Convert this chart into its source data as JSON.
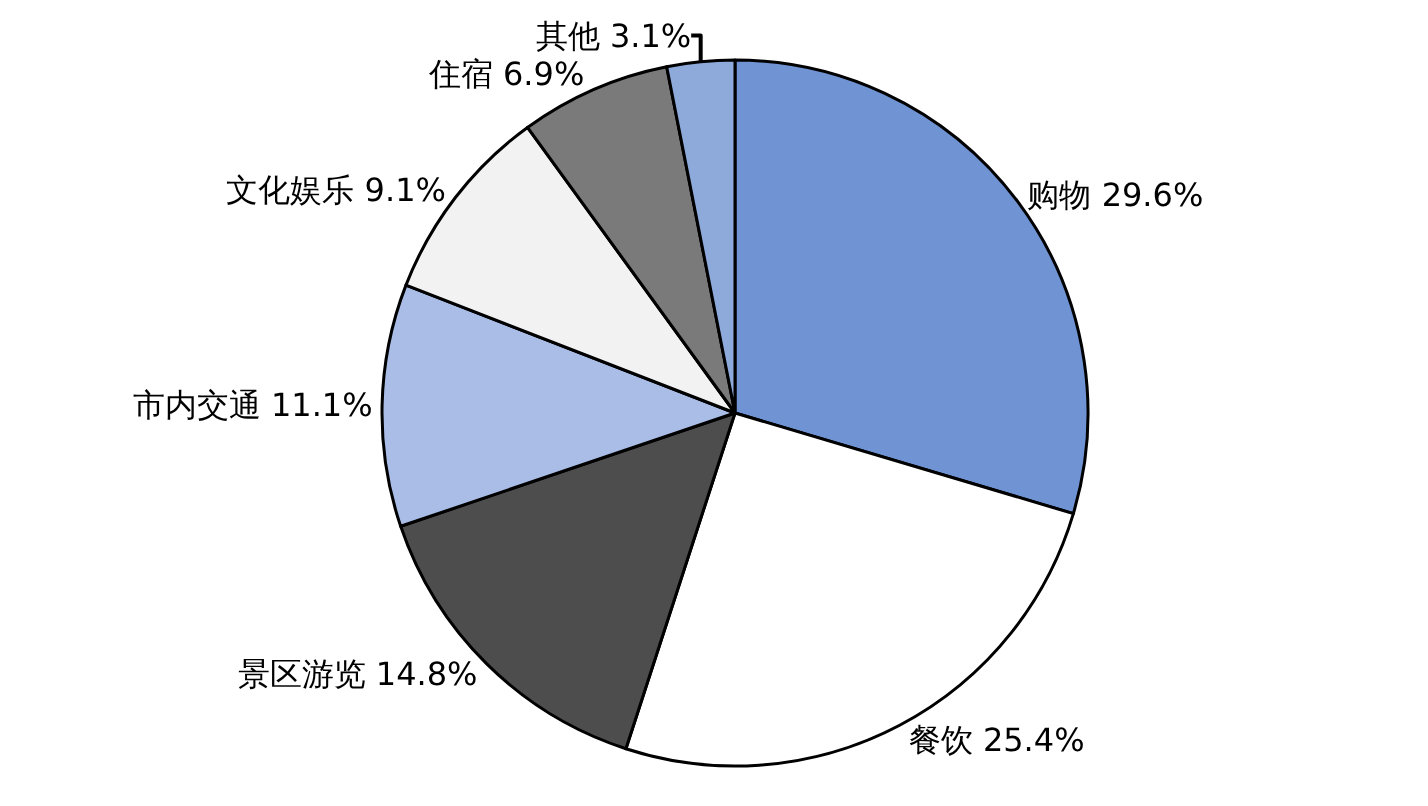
{
  "chart_data": {
    "type": "pie",
    "categories": [
      "购物",
      "餐饮",
      "景区游览",
      "市内交通",
      "文化娱乐",
      "住宿",
      "其他"
    ],
    "values": [
      29.6,
      25.4,
      14.8,
      11.1,
      9.1,
      6.9,
      3.1
    ],
    "value_labels": [
      "29.6%",
      "25.4%",
      "14.8%",
      "11.1%",
      "9.1%",
      "6.9%",
      "3.1%"
    ],
    "colors": [
      "#6f93d3",
      "#ffffff",
      "#4d4d4d",
      "#a9bde6",
      "#f2f2f2",
      "#7a7a7a",
      "#8eaadb"
    ],
    "legend": false
  }
}
